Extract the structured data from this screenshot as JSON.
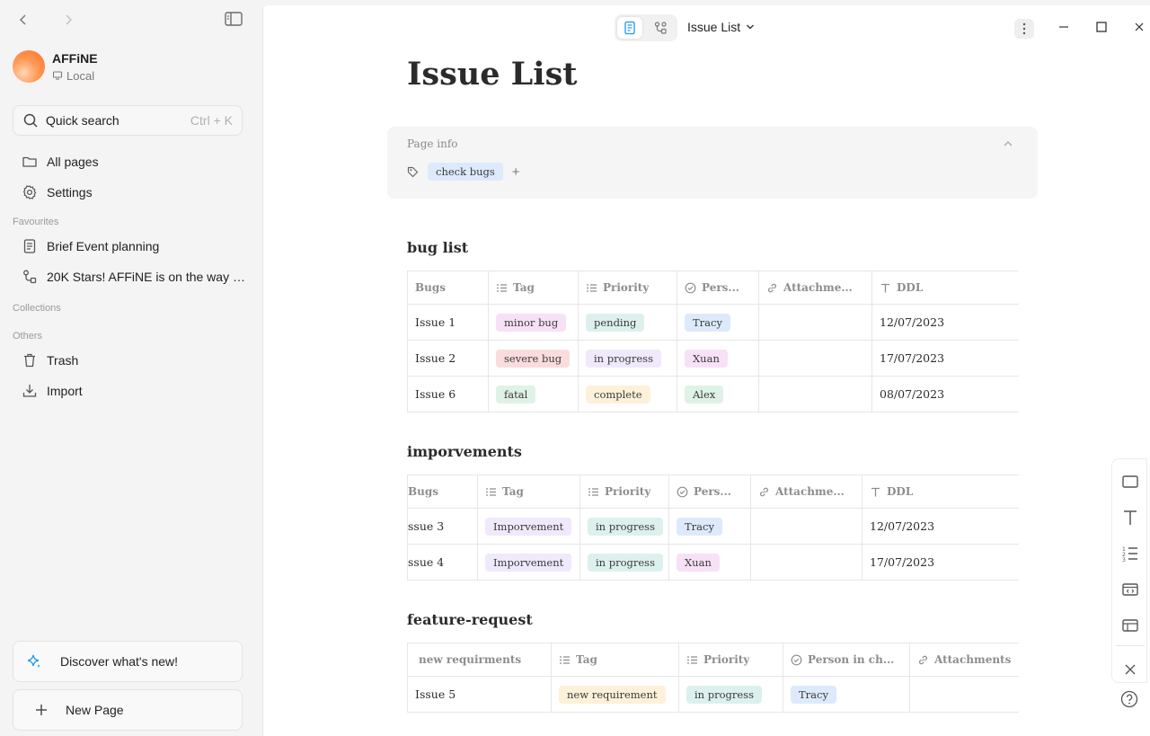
{
  "sidebar": {
    "workspace": {
      "name": "AFFiNE",
      "storage": "Local"
    },
    "search": {
      "label": "Quick search",
      "shortcut": "Ctrl + K"
    },
    "nav": {
      "all_pages": "All pages",
      "settings": "Settings"
    },
    "favourites_label": "Favourites",
    "favourites": [
      "Brief Event planning",
      "20K Stars! AFFiNE is on the way t..."
    ],
    "collections_label": "Collections",
    "others_label": "Others",
    "others": [
      "Trash",
      "Import"
    ],
    "discover": "Discover what's new!",
    "new_page": "New Page"
  },
  "header": {
    "doc_title": "Issue List"
  },
  "page": {
    "title": "Issue List",
    "page_info": {
      "label": "Page info",
      "tags": [
        "check bugs"
      ],
      "add": "+"
    }
  },
  "tables": {
    "bug_list": {
      "title": "bug list",
      "headers": [
        "Bugs",
        "Tag",
        "Priority",
        "Pers...",
        "Attachme...",
        "DDL"
      ],
      "rows": [
        [
          "Issue 1",
          "minor bug",
          "pending",
          "Tracy",
          "",
          "12/07/2023"
        ],
        [
          "Issue 2",
          "severe bug",
          "in progress",
          "Xuan",
          "",
          "17/07/2023"
        ],
        [
          "Issue 6",
          "fatal",
          "complete",
          "Alex",
          "",
          "08/07/2023"
        ]
      ]
    },
    "improvements": {
      "title": "imporvements",
      "headers": [
        "Bugs",
        "Tag",
        "Priority",
        "Pers...",
        "Attachme...",
        "DDL"
      ],
      "rows": [
        [
          "ssue 3",
          "Imporvement",
          "in progress",
          "Tracy",
          "",
          "12/07/2023"
        ],
        [
          "ssue 4",
          "Imporvement",
          "in progress",
          "Xuan",
          "",
          "17/07/2023"
        ]
      ]
    },
    "feature_request": {
      "title": "feature-request",
      "headers": [
        "new requirments",
        "Tag",
        "Priority",
        "Person in ch...",
        "Attachments"
      ],
      "rows": [
        [
          "Issue 5",
          "new requirement",
          "in progress",
          "Tracy",
          ""
        ]
      ]
    }
  },
  "colors": {
    "pink": "#f7e1f6",
    "red": "#fadcdc",
    "green": "#dff2e6",
    "purple": "#efe9fb",
    "yellow": "#fdf1d9",
    "blue": "#ddeafb",
    "teal": "#dcf1ee",
    "accent": "#1e96eb"
  }
}
